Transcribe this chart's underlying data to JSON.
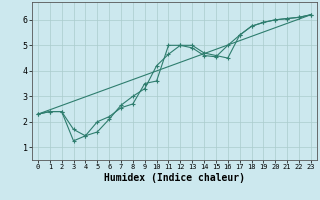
{
  "title": "",
  "xlabel": "Humidex (Indice chaleur)",
  "ylabel": "",
  "background_color": "#cce8ee",
  "grid_color": "#aacccc",
  "line_color": "#2e7d6e",
  "xlim": [
    -0.5,
    23.5
  ],
  "ylim": [
    0.5,
    6.7
  ],
  "xticks": [
    0,
    1,
    2,
    3,
    4,
    5,
    6,
    7,
    8,
    9,
    10,
    11,
    12,
    13,
    14,
    15,
    16,
    17,
    18,
    19,
    20,
    21,
    22,
    23
  ],
  "yticks": [
    1,
    2,
    3,
    4,
    5,
    6
  ],
  "series1_x": [
    0,
    1,
    2,
    3,
    4,
    5,
    6,
    7,
    8,
    9,
    10,
    11,
    12,
    13,
    14,
    15,
    16,
    17,
    18,
    19,
    20,
    21,
    22,
    23
  ],
  "series1_y": [
    2.3,
    2.4,
    2.4,
    1.7,
    1.45,
    2.0,
    2.2,
    2.55,
    2.7,
    3.5,
    3.6,
    5.0,
    5.0,
    5.0,
    4.7,
    4.6,
    4.5,
    5.4,
    5.75,
    5.9,
    6.0,
    6.05,
    6.1,
    6.2
  ],
  "series2_x": [
    0,
    1,
    2,
    3,
    4,
    5,
    6,
    7,
    8,
    9,
    10,
    11,
    12,
    13,
    14,
    15,
    16,
    17,
    18,
    19,
    20,
    21,
    22,
    23
  ],
  "series2_y": [
    2.3,
    2.4,
    2.4,
    1.25,
    1.45,
    1.6,
    2.1,
    2.65,
    3.0,
    3.3,
    4.2,
    4.65,
    5.0,
    4.9,
    4.6,
    4.55,
    5.0,
    5.4,
    5.75,
    5.9,
    6.0,
    6.05,
    6.1,
    6.2
  ],
  "series3_x": [
    0,
    23
  ],
  "series3_y": [
    2.3,
    6.2
  ]
}
